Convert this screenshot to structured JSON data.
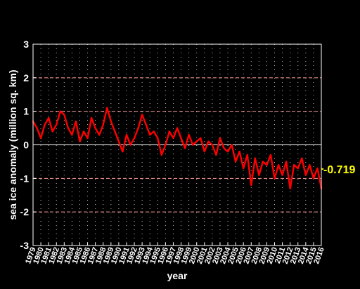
{
  "chart_data": {
    "type": "line",
    "title": "",
    "xlabel": "year",
    "ylabel": "sea ice anomaly (million sq. km)",
    "xlim": [
      1979,
      2016
    ],
    "ylim": [
      -3,
      3
    ],
    "grid": true,
    "x_ticks": [
      "1979",
      "1980",
      "1981",
      "1982",
      "1983",
      "1984",
      "1985",
      "1986",
      "1987",
      "1988",
      "1989",
      "1990",
      "1991",
      "1992",
      "1993",
      "1994",
      "1995",
      "1996",
      "1997",
      "1998",
      "1999",
      "2000",
      "2001",
      "2002",
      "2003",
      "2004",
      "2005",
      "2006",
      "2007",
      "2008",
      "2009",
      "2010",
      "2011",
      "2012",
      "2013",
      "2014",
      "2015",
      "2016"
    ],
    "y_ticks": [
      "-3",
      "-2",
      "-1",
      "0",
      "1",
      "2",
      "3"
    ],
    "colors": {
      "background": "#000000",
      "series": "#ff0000",
      "callout": "#ffff00",
      "hgrid": "#ff9999",
      "vgrid": "#bbbbbb"
    },
    "series": [
      {
        "color": "#ff0000",
        "x": [
          1979.0,
          1979.5,
          1980.0,
          1980.5,
          1981.0,
          1981.5,
          1982.0,
          1982.5,
          1983.0,
          1983.5,
          1984.0,
          1984.5,
          1985.0,
          1985.5,
          1986.0,
          1986.5,
          1987.0,
          1987.5,
          1988.0,
          1988.5,
          1989.0,
          1989.5,
          1990.0,
          1990.5,
          1991.0,
          1991.5,
          1992.0,
          1992.5,
          1993.0,
          1993.5,
          1994.0,
          1994.5,
          1995.0,
          1995.5,
          1996.0,
          1996.5,
          1997.0,
          1997.5,
          1998.0,
          1998.5,
          1999.0,
          1999.5,
          2000.0,
          2000.5,
          2001.0,
          2001.5,
          2002.0,
          2002.5,
          2003.0,
          2003.5,
          2004.0,
          2004.5,
          2005.0,
          2005.5,
          2006.0,
          2006.5,
          2007.0,
          2007.5,
          2008.0,
          2008.5,
          2009.0,
          2009.5,
          2010.0,
          2010.5,
          2011.0,
          2011.5,
          2012.0,
          2012.5,
          2013.0,
          2013.5,
          2014.0,
          2014.5,
          2015.0,
          2015.5,
          2016.0
        ],
        "y": [
          0.7,
          0.5,
          0.2,
          0.6,
          0.8,
          0.4,
          0.6,
          1.0,
          0.9,
          0.5,
          0.3,
          0.7,
          0.1,
          0.4,
          0.2,
          0.8,
          0.5,
          0.3,
          0.6,
          1.1,
          0.7,
          0.4,
          0.1,
          -0.2,
          0.3,
          0.0,
          0.2,
          0.5,
          0.9,
          0.6,
          0.3,
          0.4,
          0.2,
          -0.3,
          0.0,
          0.4,
          0.2,
          0.5,
          0.2,
          -0.1,
          0.3,
          0.0,
          0.1,
          0.2,
          -0.2,
          0.1,
          0.0,
          -0.3,
          0.2,
          -0.1,
          -0.2,
          0.0,
          -0.5,
          -0.2,
          -0.7,
          -0.3,
          -1.2,
          -0.4,
          -0.9,
          -0.5,
          -0.6,
          -0.3,
          -1.0,
          -0.6,
          -0.9,
          -0.5,
          -1.3,
          -0.6,
          -0.7,
          -0.4,
          -0.9,
          -0.6,
          -1.0,
          -0.7,
          -1.3
        ]
      }
    ],
    "annotation": {
      "label": "-0.719",
      "x": 2016.0,
      "y": -0.719
    }
  }
}
